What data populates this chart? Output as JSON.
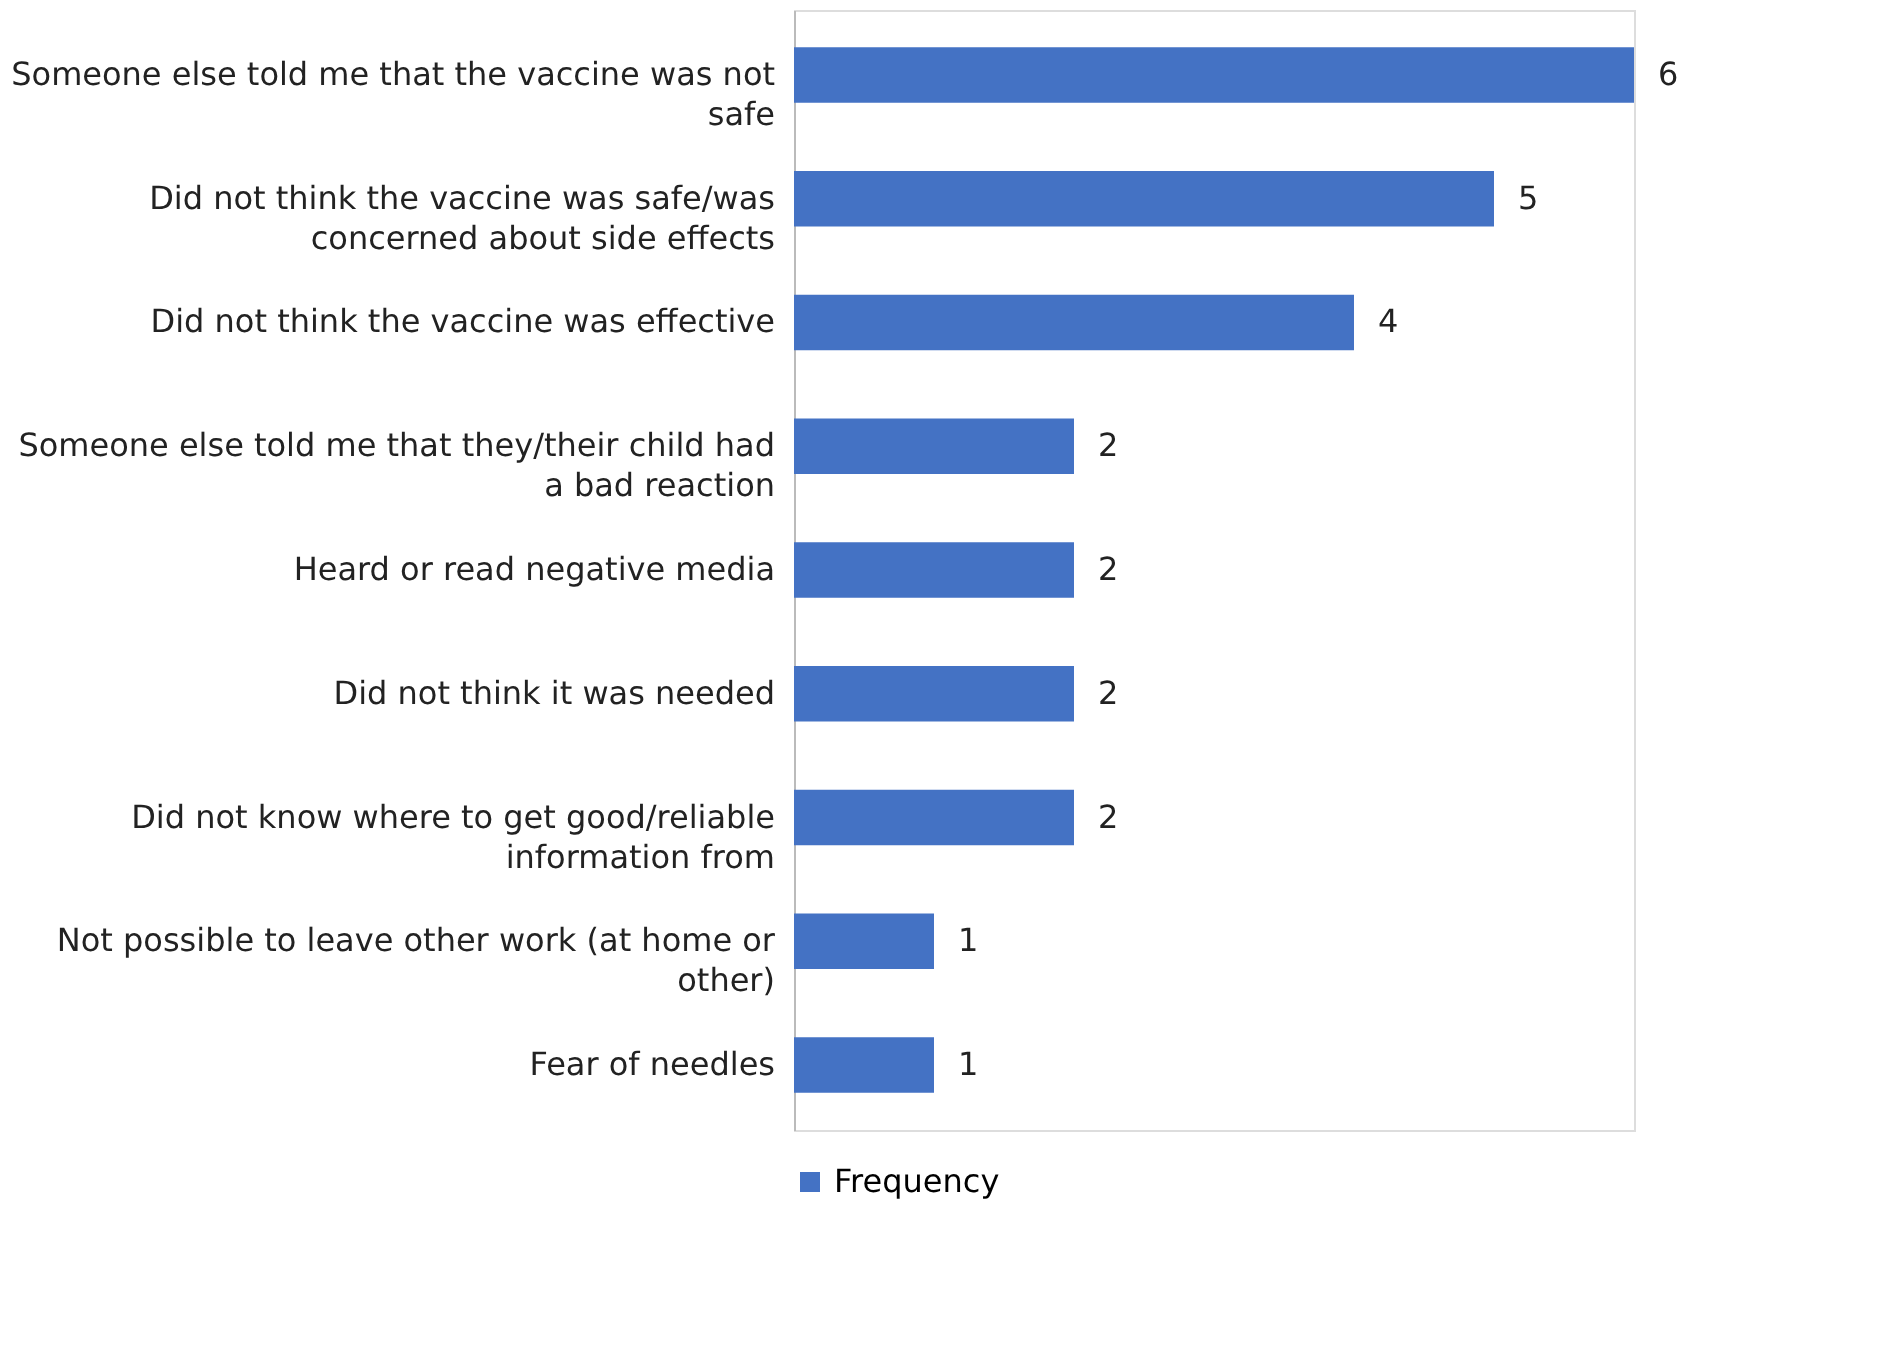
{
  "chart_data": {
    "type": "bar",
    "orientation": "horizontal",
    "data_labels": true,
    "legend": "bottom",
    "categories": [
      "Someone else told me that the vaccine was not safe",
      "Did not think the vaccine was safe/was concerned about side effects",
      "Did not think the vaccine was effective",
      "Someone else told me that they/their child had a bad reaction",
      "Heard or read negative media",
      "Did not think it was needed",
      "Did not know where to get good/reliable information from",
      "Not possible to leave other work (at home or other)",
      "Fear of needles"
    ],
    "series": [
      {
        "name": "Frequency",
        "color": "#4472c4",
        "values": [
          6,
          5,
          4,
          2,
          2,
          2,
          2,
          1,
          1
        ]
      }
    ]
  }
}
